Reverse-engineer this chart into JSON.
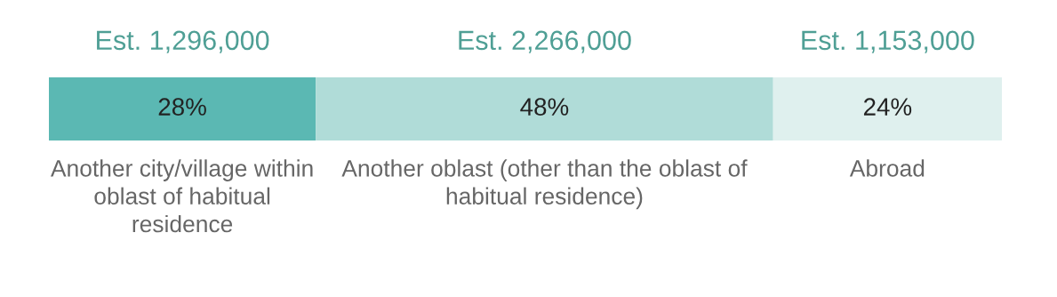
{
  "chart_data": {
    "type": "bar",
    "orientation": "horizontal",
    "stacked": true,
    "categories": [
      null
    ],
    "xlim": [
      0,
      100
    ],
    "tick_labels": false,
    "grid": false,
    "legend": false,
    "series": [
      {
        "name": "Another city/village within oblast of habitual residence",
        "color": "#5bb8b3",
        "values": [
          28
        ],
        "value_labels": [
          "28%"
        ]
      },
      {
        "name": "Another oblast (other than the oblast of habitual residence)",
        "color": "#b0dcd8",
        "values": [
          48
        ],
        "value_labels": [
          "48%"
        ]
      },
      {
        "name": "Abroad",
        "color": "#dff0ee",
        "values": [
          24
        ],
        "value_labels": [
          "24%"
        ]
      }
    ],
    "annotations": [
      "Est. 1,296,000",
      "Est. 2,266,000",
      "Est. 1,153,000"
    ]
  }
}
